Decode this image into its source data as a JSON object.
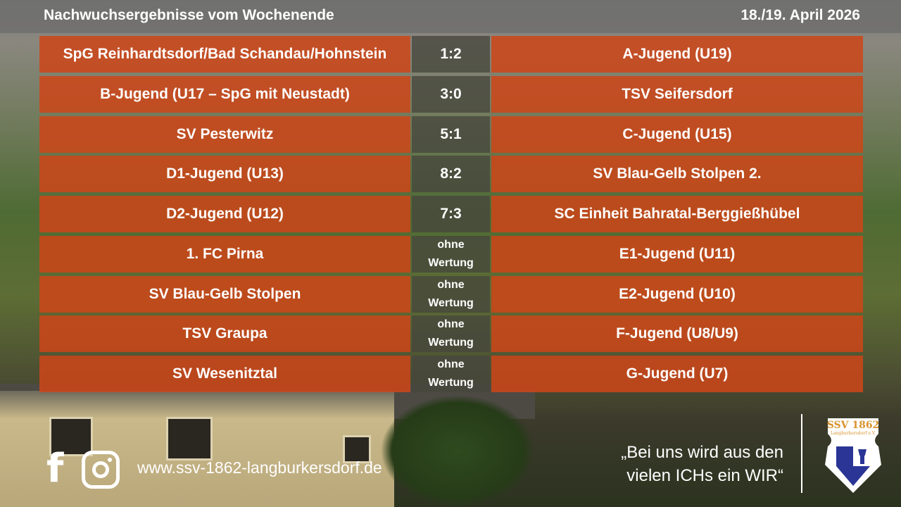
{
  "header": {
    "title": "Nachwuchsergebnisse vom Wochenende",
    "date": "18./19. April 2026"
  },
  "results": [
    {
      "home": "SpG Reinhardtsdorf/Bad Schandau/Hohnstein",
      "score": "1:2",
      "away": "A-Jugend (U19)"
    },
    {
      "home": "B-Jugend (U17 – SpG mit Neustadt)",
      "score": "3:0",
      "away": "TSV Seifersdorf"
    },
    {
      "home": "SV Pesterwitz",
      "score": "5:1",
      "away": "C-Jugend (U15)"
    },
    {
      "home": "D1-Jugend (U13)",
      "score": "8:2",
      "away": "SV Blau-Gelb Stolpen 2."
    },
    {
      "home": "D2-Jugend (U12)",
      "score": "7:3",
      "away": "SC Einheit Bahratal-Berggießhübel"
    },
    {
      "home": "1. FC Pirna",
      "score": "ohne Wertung",
      "away": "E1-Jugend (U11)"
    },
    {
      "home": "SV Blau-Gelb Stolpen",
      "score": "ohne Wertung",
      "away": "E2-Jugend (U10)"
    },
    {
      "home": "TSV Graupa",
      "score": "ohne Wertung",
      "away": "F-Jugend (U8/U9)"
    },
    {
      "home": "SV Wesenitztal",
      "score": "ohne Wertung",
      "away": "G-Jugend (U7)"
    }
  ],
  "footer": {
    "facebook_icon": "f",
    "url": "www.ssv-1862-langburkersdorf.de",
    "quote_line1": "„Bei uns wird aus den",
    "quote_line2": "vielen ICHs ein WIR“",
    "logo_text": "SSV 1862 Langburkersdorf e.V."
  },
  "colors": {
    "cell": "#cd4619",
    "score_cell": "#46463c",
    "logo_blue": "#2a3596",
    "logo_gold": "#d9932f"
  }
}
